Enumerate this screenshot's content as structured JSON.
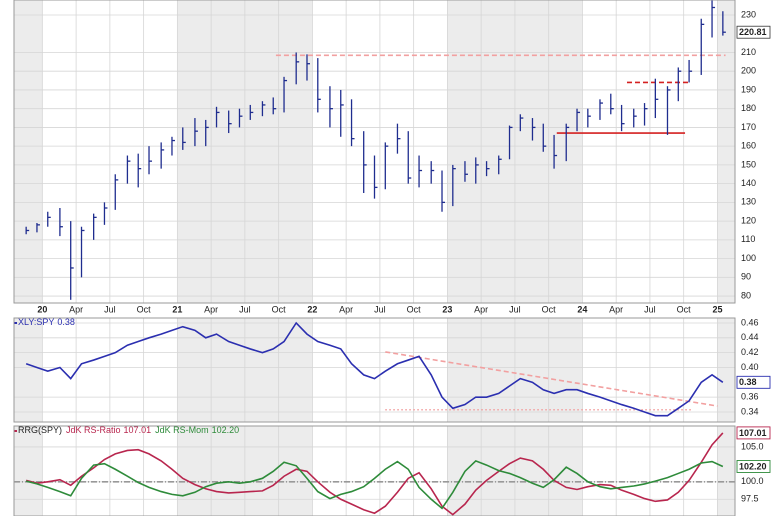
{
  "chart_data": [
    {
      "type": "hlc",
      "color": "#1f2d8f",
      "grid": true,
      "xlim": [
        2019.79,
        2025.13
      ],
      "xticks": [
        {
          "value": 2020,
          "label": "20"
        },
        {
          "value": 2020.25,
          "label": "Apr"
        },
        {
          "value": 2020.5,
          "label": "Jul"
        },
        {
          "value": 2020.75,
          "label": "Oct"
        },
        {
          "value": 2021,
          "label": "21"
        },
        {
          "value": 2021.25,
          "label": "Apr"
        },
        {
          "value": 2021.5,
          "label": "Jul"
        },
        {
          "value": 2021.75,
          "label": "Oct"
        },
        {
          "value": 2022,
          "label": "22"
        },
        {
          "value": 2022.25,
          "label": "Apr"
        },
        {
          "value": 2022.5,
          "label": "Jul"
        },
        {
          "value": 2022.75,
          "label": "Oct"
        },
        {
          "value": 2023,
          "label": "23"
        },
        {
          "value": 2023.25,
          "label": "Apr"
        },
        {
          "value": 2023.5,
          "label": "Jul"
        },
        {
          "value": 2023.75,
          "label": "Oct"
        },
        {
          "value": 2024,
          "label": "24"
        },
        {
          "value": 2024.25,
          "label": "Apr"
        },
        {
          "value": 2024.5,
          "label": "Jul"
        },
        {
          "value": 2024.75,
          "label": "Oct"
        },
        {
          "value": 2025,
          "label": "25"
        }
      ],
      "ylim": [
        76.3,
        238
      ],
      "yticks": [
        80,
        90,
        100,
        110,
        120,
        130,
        140,
        150,
        160,
        170,
        180,
        190,
        200,
        210,
        230
      ],
      "x": [
        2019.88,
        2019.96,
        2020.04,
        2020.13,
        2020.21,
        2020.29,
        2020.38,
        2020.46,
        2020.54,
        2020.63,
        2020.71,
        2020.79,
        2020.88,
        2020.96,
        2021.04,
        2021.13,
        2021.21,
        2021.29,
        2021.38,
        2021.46,
        2021.54,
        2021.63,
        2021.71,
        2021.79,
        2021.88,
        2021.96,
        2022.04,
        2022.13,
        2022.21,
        2022.29,
        2022.38,
        2022.46,
        2022.54,
        2022.63,
        2022.71,
        2022.79,
        2022.88,
        2022.96,
        2023.04,
        2023.13,
        2023.21,
        2023.29,
        2023.38,
        2023.46,
        2023.54,
        2023.63,
        2023.71,
        2023.79,
        2023.88,
        2023.96,
        2024.04,
        2024.13,
        2024.21,
        2024.29,
        2024.38,
        2024.46,
        2024.54,
        2024.63,
        2024.71,
        2024.79,
        2024.88,
        2024.96,
        2025.04
      ],
      "high": [
        117,
        119,
        125,
        127,
        120,
        117,
        124,
        130,
        145,
        155,
        156,
        160,
        162,
        165,
        170,
        175,
        174,
        181,
        179,
        180,
        182,
        184,
        186,
        197,
        210,
        209,
        207,
        192,
        190,
        185,
        168,
        155,
        162,
        172,
        168,
        155,
        152,
        147,
        150,
        152,
        154,
        152,
        155,
        171,
        177,
        175,
        172,
        166,
        172,
        180,
        180,
        185,
        188,
        182,
        180,
        183,
        196,
        192,
        202,
        206,
        228,
        238,
        232
      ],
      "low": [
        113,
        114,
        117,
        112,
        78,
        90,
        110,
        118,
        126,
        140,
        138,
        145,
        148,
        155,
        158,
        160,
        160,
        170,
        167,
        170,
        174,
        176,
        177,
        178,
        193,
        195,
        178,
        170,
        165,
        160,
        135,
        132,
        137,
        156,
        140,
        138,
        140,
        125,
        128,
        141,
        140,
        144,
        145,
        153,
        168,
        163,
        157,
        148,
        152,
        168,
        170,
        174,
        177,
        168,
        170,
        171,
        175,
        166,
        184,
        194,
        198,
        218,
        219
      ],
      "close": [
        115,
        118,
        122,
        117,
        95,
        115,
        122,
        127,
        142,
        152,
        148,
        152,
        158,
        163,
        162,
        168,
        170,
        178,
        172,
        176,
        178,
        182,
        180,
        195,
        205,
        204,
        185,
        180,
        182,
        164,
        150,
        138,
        160,
        164,
        143,
        147,
        147,
        130,
        148,
        145,
        150,
        148,
        153,
        170,
        175,
        170,
        160,
        155,
        170,
        178,
        176,
        183,
        180,
        172,
        176,
        180,
        185,
        190,
        200,
        200,
        225,
        234,
        220.81
      ],
      "annotations": [
        {
          "x": [
            2021.73,
            2025.06
          ],
          "y": [
            208.5,
            208.5
          ],
          "color": "#f2a0a0",
          "style": "dashed"
        },
        {
          "x": [
            2023.81,
            2024.76
          ],
          "y": [
            167,
            167
          ],
          "color": "#d42020",
          "style": "solid"
        },
        {
          "x": [
            2024.33,
            2024.8
          ],
          "y": [
            194,
            194
          ],
          "color": "#d42020",
          "style": "dashed"
        }
      ]
    },
    {
      "type": "line",
      "grid": true,
      "ylim": [
        0.3265,
        0.4667
      ],
      "yticks": [
        0.34,
        0.36,
        {
          "value": 0.4,
          "label": "0.40"
        },
        0.42,
        0.44,
        0.46
      ],
      "series": [
        {
          "name": "XLY:SPY",
          "color": "#2b2fb0",
          "values": [
            0.405,
            0.4,
            0.395,
            0.4,
            0.385,
            0.405,
            0.41,
            0.415,
            0.42,
            0.43,
            0.435,
            0.44,
            0.445,
            0.45,
            0.455,
            0.45,
            0.44,
            0.445,
            0.435,
            0.43,
            0.425,
            0.42,
            0.425,
            0.435,
            0.46,
            0.445,
            0.435,
            0.43,
            0.425,
            0.405,
            0.39,
            0.385,
            0.395,
            0.405,
            0.41,
            0.415,
            0.39,
            0.36,
            0.345,
            0.35,
            0.36,
            0.36,
            0.365,
            0.375,
            0.385,
            0.38,
            0.37,
            0.365,
            0.37,
            0.37,
            0.365,
            0.36,
            0.355,
            0.35,
            0.345,
            0.34,
            0.335,
            0.335,
            0.345,
            0.355,
            0.38,
            0.39,
            0.38
          ]
        }
      ],
      "annotations": [
        {
          "x": [
            2022.54,
            2025.0
          ],
          "y": [
            0.421,
            0.348
          ],
          "color": "#f2a0a0",
          "style": "dashed"
        },
        {
          "x": [
            2022.54,
            2024.82
          ],
          "y": [
            0.343,
            0.343
          ],
          "color": "#f2a0a0",
          "style": "dotted"
        }
      ]
    },
    {
      "type": "line",
      "grid": true,
      "title": "RRG(SPY)",
      "ylim": [
        95.1,
        108
      ],
      "yticks": [
        97.5,
        {
          "value": 100,
          "label": "100.0"
        },
        {
          "value": 105,
          "label": "105.0"
        }
      ],
      "series": [
        {
          "name": "JdK RS-Ratio",
          "color": "#b8264e",
          "values": [
            100.2,
            99.8,
            100.0,
            100.3,
            99.5,
            100.8,
            102.0,
            103.2,
            104.0,
            104.5,
            104.6,
            104.0,
            103.0,
            101.8,
            100.5,
            99.6,
            99.0,
            98.6,
            98.4,
            98.5,
            98.6,
            98.7,
            99.5,
            100.8,
            101.8,
            101.5,
            100.0,
            98.5,
            97.5,
            96.8,
            96.0,
            95.5,
            96.5,
            98.5,
            100.5,
            101.3,
            99.0,
            96.5,
            95.3,
            96.8,
            98.8,
            100.2,
            101.5,
            102.6,
            103.4,
            103.0,
            101.8,
            100.2,
            99.2,
            98.9,
            99.3,
            99.6,
            99.5,
            98.8,
            98.2,
            97.6,
            97.2,
            97.4,
            98.5,
            100.2,
            102.8,
            105.3,
            107.01
          ]
        },
        {
          "name": "JdK RS-Mom",
          "color": "#2e8b3a",
          "values": [
            100.1,
            99.7,
            99.2,
            98.6,
            98.0,
            100.5,
            102.4,
            102.6,
            101.8,
            100.8,
            99.9,
            99.2,
            98.6,
            98.2,
            98.0,
            98.5,
            99.3,
            99.8,
            100.0,
            99.8,
            100.0,
            100.5,
            101.5,
            102.8,
            102.3,
            100.5,
            98.6,
            97.6,
            98.2,
            98.6,
            99.3,
            100.5,
            101.8,
            102.9,
            101.8,
            99.2,
            97.5,
            96.2,
            98.5,
            101.5,
            103.0,
            102.4,
            101.6,
            101.2,
            100.6,
            99.8,
            99.2,
            100.3,
            102.1,
            101.2,
            100.0,
            99.3,
            99.0,
            99.2,
            99.4,
            99.7,
            100.1,
            100.6,
            101.2,
            101.8,
            102.7,
            102.9,
            102.2
          ],
          "value_labels": [
            null,
            null,
            null,
            null,
            null,
            null,
            null,
            null,
            null,
            null,
            null,
            null,
            null,
            null,
            null,
            null,
            null,
            null,
            null,
            null,
            null,
            null,
            null,
            null,
            null,
            null,
            null,
            null,
            null,
            null,
            null,
            null,
            null,
            null,
            null,
            null,
            null,
            null,
            null,
            null,
            null,
            null,
            null,
            null,
            null,
            null,
            null,
            null,
            null,
            null,
            null,
            null,
            null,
            null,
            null,
            null,
            null,
            null,
            null,
            null,
            null,
            null,
            "102.20"
          ]
        }
      ],
      "annotations": [
        {
          "x": [
            2019.79,
            2025.13
          ],
          "y": [
            100,
            100
          ],
          "color": "#999999",
          "style": "dashdot"
        }
      ]
    }
  ]
}
